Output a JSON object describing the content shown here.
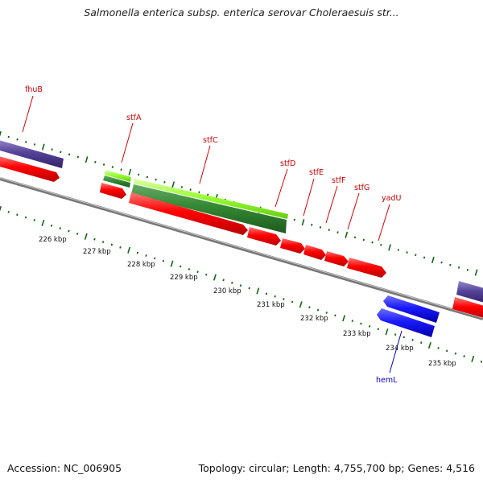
{
  "title": "Salmonella enterica subsp. enterica serovar Choleraesuis str...",
  "footer": {
    "accession": "Accession: NC_006905",
    "topology": "Topology: circular; Length: 4,755,700 bp; Genes: 4,516"
  },
  "ruler": {
    "labels": [
      "226 kbp",
      "227 kbp",
      "228 kbp",
      "229 kbp",
      "230 kbp",
      "231 kbp",
      "232 kbp",
      "233 kbp",
      "234 kbp",
      "235 kbp"
    ]
  },
  "genes": [
    {
      "name": "fhuB",
      "label_color": "#cc0000"
    },
    {
      "name": "stfA",
      "label_color": "#cc0000"
    },
    {
      "name": "stfC",
      "label_color": "#cc0000"
    },
    {
      "name": "stfD",
      "label_color": "#cc0000"
    },
    {
      "name": "stfE",
      "label_color": "#cc0000"
    },
    {
      "name": "stfF",
      "label_color": "#cc0000"
    },
    {
      "name": "stfG",
      "label_color": "#cc0000"
    },
    {
      "name": "yadU",
      "label_color": "#cc0000"
    },
    {
      "name": "hemL",
      "label_color": "#0000cc"
    }
  ],
  "colors": {
    "cds_forward": "#ff0000",
    "cds_reverse": "#1a1aff",
    "fimbrial_light": "#99ff33",
    "fimbrial_dark": "#338833",
    "other_gene": "#554499",
    "backbone": "#888888",
    "tick": "#116611"
  }
}
